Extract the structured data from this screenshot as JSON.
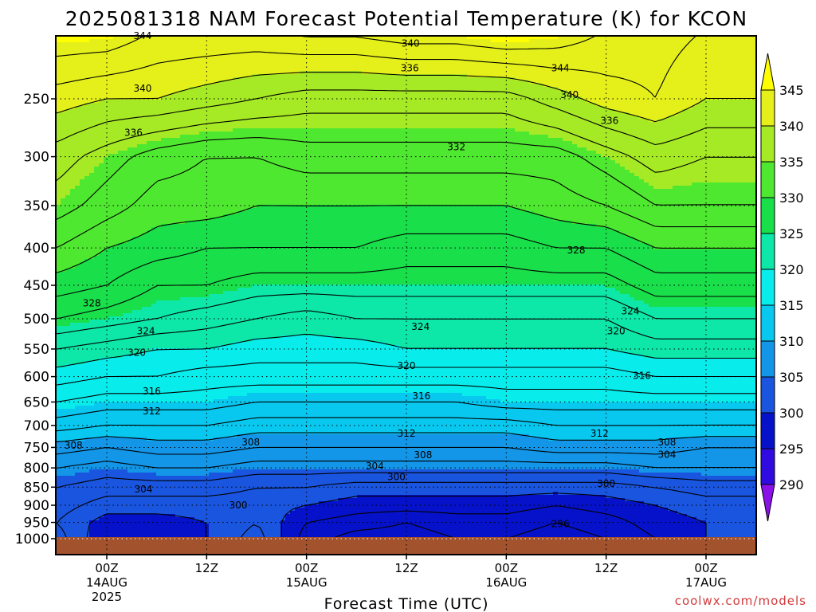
{
  "chart_data": {
    "type": "contour",
    "title": "2025081318 NAM Forecast Potential Temperature (K) for KCON",
    "xlabel": "Forecast Time (UTC)",
    "credit": "coolwx.com/models",
    "y_axis": {
      "scale": "log",
      "inverted": true,
      "ylim": [
        1000,
        200
      ],
      "ticks": [
        250,
        300,
        350,
        400,
        450,
        500,
        550,
        600,
        650,
        700,
        750,
        800,
        850,
        900,
        950,
        1000
      ]
    },
    "x_axis": {
      "xlim": [
        "2025-08-13T18Z",
        "2025-08-17T06Z"
      ],
      "ticks": [
        {
          "label": "00Z",
          "day": "14AUG",
          "year": "2025",
          "hour": 6
        },
        {
          "label": "12Z",
          "day": "",
          "year": "",
          "hour": 18
        },
        {
          "label": "00Z",
          "day": "15AUG",
          "year": "",
          "hour": 30
        },
        {
          "label": "12Z",
          "day": "",
          "year": "",
          "hour": 42
        },
        {
          "label": "00Z",
          "day": "16AUG",
          "year": "",
          "hour": 54
        },
        {
          "label": "12Z",
          "day": "",
          "year": "",
          "hour": 66
        },
        {
          "label": "00Z",
          "day": "17AUG",
          "year": "",
          "hour": 78
        }
      ]
    },
    "grid": "dotted",
    "colorbar": {
      "levels": [
        290,
        295,
        300,
        305,
        310,
        315,
        320,
        325,
        330,
        335,
        340,
        345
      ],
      "colors": [
        "#8a12e8",
        "#2f0be0",
        "#0612c9",
        "#1a55e0",
        "#1396e8",
        "#09c8f0",
        "#08edec",
        "#0de8a8",
        "#19df4a",
        "#4fe830",
        "#a6ea25",
        "#e5f01a",
        "#ffff00"
      ]
    },
    "theta_levels": [
      {
        "hPa": 200,
        "values": [
          346,
          346,
          344,
          344,
          344,
          345,
          345,
          346,
          346,
          347,
          346,
          344,
          343,
          342
        ]
      },
      {
        "hPa": 250,
        "values": [
          341,
          340,
          340,
          339,
          338,
          337,
          337,
          337,
          337,
          337,
          339,
          341,
          342,
          340
        ]
      },
      {
        "hPa": 300,
        "values": [
          337,
          335,
          333,
          332,
          332,
          333,
          333,
          333,
          333,
          333,
          333,
          335,
          337,
          336
        ]
      },
      {
        "hPa": 350,
        "values": [
          335,
          333,
          331,
          331,
          330,
          330,
          330,
          330,
          330,
          330,
          331,
          332,
          334,
          334
        ]
      },
      {
        "hPa": 400,
        "values": [
          332,
          330,
          329,
          328,
          328,
          328,
          328,
          327,
          327,
          327,
          328,
          328,
          330,
          330
        ]
      },
      {
        "hPa": 450,
        "values": [
          329,
          328,
          326,
          326,
          325,
          325,
          325,
          325,
          325,
          325,
          325,
          325,
          327,
          327
        ]
      },
      {
        "hPa": 500,
        "values": [
          326,
          325,
          324,
          323,
          322,
          321,
          322,
          322,
          322,
          322,
          322,
          322,
          324,
          324
        ]
      },
      {
        "hPa": 550,
        "values": [
          322,
          321,
          320,
          320,
          319,
          319,
          319,
          320,
          320,
          320,
          320,
          320,
          321,
          321
        ]
      },
      {
        "hPa": 600,
        "values": [
          319,
          318,
          318,
          317,
          317,
          317,
          317,
          317,
          317,
          317,
          317,
          317,
          318,
          318
        ]
      },
      {
        "hPa": 650,
        "values": [
          316,
          315,
          315,
          315,
          314,
          314,
          314,
          314,
          314,
          315,
          315,
          315,
          315,
          315
        ]
      },
      {
        "hPa": 700,
        "values": [
          313,
          312,
          312,
          312,
          311,
          311,
          311,
          311,
          311,
          311,
          312,
          312,
          312,
          312
        ]
      },
      {
        "hPa": 750,
        "values": [
          309,
          308,
          309,
          309,
          308,
          308,
          308,
          308,
          308,
          308,
          309,
          309,
          309,
          308
        ]
      },
      {
        "hPa": 800,
        "values": [
          306,
          305,
          306,
          306,
          305,
          305,
          305,
          305,
          305,
          305,
          305,
          305,
          306,
          306
        ]
      },
      {
        "hPa": 850,
        "values": [
          304,
          303,
          303,
          303,
          302,
          302,
          301,
          301,
          301,
          301,
          301,
          301,
          302,
          303
        ]
      },
      {
        "hPa": 900,
        "values": [
          303,
          301,
          301,
          301,
          301,
          300,
          299,
          299,
          299,
          299,
          298,
          299,
          300,
          301
        ]
      },
      {
        "hPa": 950,
        "values": [
          302,
          299,
          299,
          300,
          302,
          298,
          297,
          296,
          297,
          297,
          296,
          297,
          299,
          300
        ]
      },
      {
        "hPa": 1000,
        "values": [
          303,
          298,
          298,
          300,
          303,
          297,
          295,
          295,
          296,
          296,
          295,
          296,
          298,
          300
        ]
      }
    ],
    "time_hours": [
      0,
      6,
      12,
      18,
      24,
      30,
      36,
      42,
      48,
      54,
      60,
      66,
      72,
      78
    ],
    "contour_labels": [
      {
        "text": "344",
        "t": 10.3,
        "p": 205
      },
      {
        "text": "340",
        "t": 42.5,
        "p": 210
      },
      {
        "text": "344",
        "t": 60.5,
        "p": 227
      },
      {
        "text": "336",
        "t": 42.4,
        "p": 227
      },
      {
        "text": "340",
        "t": 10.3,
        "p": 242
      },
      {
        "text": "340",
        "t": 61.6,
        "p": 247
      },
      {
        "text": "336",
        "t": 66.4,
        "p": 268
      },
      {
        "text": "336",
        "t": 9.2,
        "p": 278
      },
      {
        "text": "332",
        "t": 48.0,
        "p": 291
      },
      {
        "text": "328",
        "t": 62.4,
        "p": 403
      },
      {
        "text": "328",
        "t": 4.2,
        "p": 476
      },
      {
        "text": "324",
        "t": 68.9,
        "p": 488
      },
      {
        "text": "324",
        "t": 10.7,
        "p": 520
      },
      {
        "text": "324",
        "t": 43.7,
        "p": 513
      },
      {
        "text": "320",
        "t": 67.2,
        "p": 520
      },
      {
        "text": "320",
        "t": 9.6,
        "p": 556
      },
      {
        "text": "320",
        "t": 42.0,
        "p": 580
      },
      {
        "text": "316",
        "t": 70.3,
        "p": 598
      },
      {
        "text": "316",
        "t": 11.4,
        "p": 628
      },
      {
        "text": "316",
        "t": 43.8,
        "p": 638
      },
      {
        "text": "312",
        "t": 11.4,
        "p": 669
      },
      {
        "text": "312",
        "t": 42.0,
        "p": 718
      },
      {
        "text": "312",
        "t": 65.2,
        "p": 718
      },
      {
        "text": "308",
        "t": 2.0,
        "p": 745
      },
      {
        "text": "308",
        "t": 23.3,
        "p": 738
      },
      {
        "text": "308",
        "t": 73.3,
        "p": 738
      },
      {
        "text": "308",
        "t": 44.0,
        "p": 768
      },
      {
        "text": "304",
        "t": 73.3,
        "p": 767
      },
      {
        "text": "304",
        "t": 38.2,
        "p": 796
      },
      {
        "text": "300",
        "t": 40.8,
        "p": 823
      },
      {
        "text": "300",
        "t": 66.0,
        "p": 841
      },
      {
        "text": "304",
        "t": 10.4,
        "p": 856
      },
      {
        "text": "300",
        "t": 21.8,
        "p": 900
      },
      {
        "text": "296",
        "t": 60.5,
        "p": 955
      }
    ]
  }
}
